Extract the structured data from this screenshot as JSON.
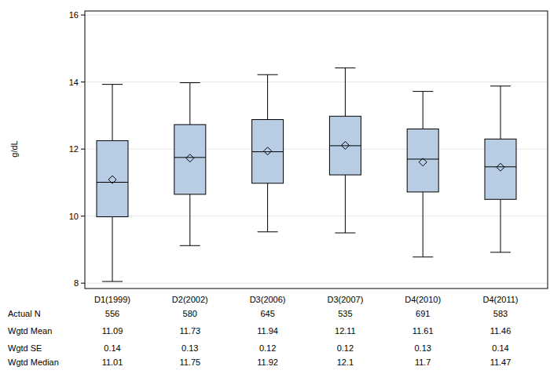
{
  "chart_data": {
    "type": "box",
    "y_label": "g/dL",
    "categories": [
      "D1(1999)",
      "D2(2002)",
      "D3(2006)",
      "D3(2007)",
      "D4(2010)",
      "D4(2011)"
    ],
    "boxes": {
      "whisker_low": [
        8.05,
        9.12,
        9.53,
        9.5,
        8.78,
        8.92
      ],
      "q1": [
        9.98,
        10.65,
        10.98,
        11.23,
        10.72,
        10.5
      ],
      "median": [
        11.01,
        11.75,
        11.92,
        12.1,
        11.7,
        11.47
      ],
      "q3": [
        12.25,
        12.73,
        12.88,
        12.98,
        12.6,
        12.3
      ],
      "whisker_high": [
        13.93,
        13.98,
        14.22,
        14.42,
        13.72,
        13.88
      ],
      "mean": [
        11.09,
        11.73,
        11.94,
        12.11,
        11.61,
        11.46
      ]
    },
    "color": "#b8cce4",
    "marker": "diamond",
    "grid": true,
    "ylim": [
      7.84,
      16.12
    ],
    "yticks": [
      8,
      10,
      12,
      14,
      16
    ],
    "table": {
      "rows": [
        {
          "label": "Actual N",
          "values": [
            556,
            580,
            645,
            535,
            691,
            583
          ]
        },
        {
          "label": "Wgtd Mean",
          "values": [
            11.09,
            11.73,
            11.94,
            12.11,
            11.61,
            11.46
          ]
        },
        {
          "label": "Wgtd SE",
          "values": [
            0.14,
            0.13,
            0.12,
            0.12,
            0.13,
            0.14
          ]
        },
        {
          "label": "Wgtd Median",
          "values": [
            11.01,
            11.75,
            11.92,
            12.1,
            11.7,
            11.47
          ]
        }
      ]
    }
  }
}
